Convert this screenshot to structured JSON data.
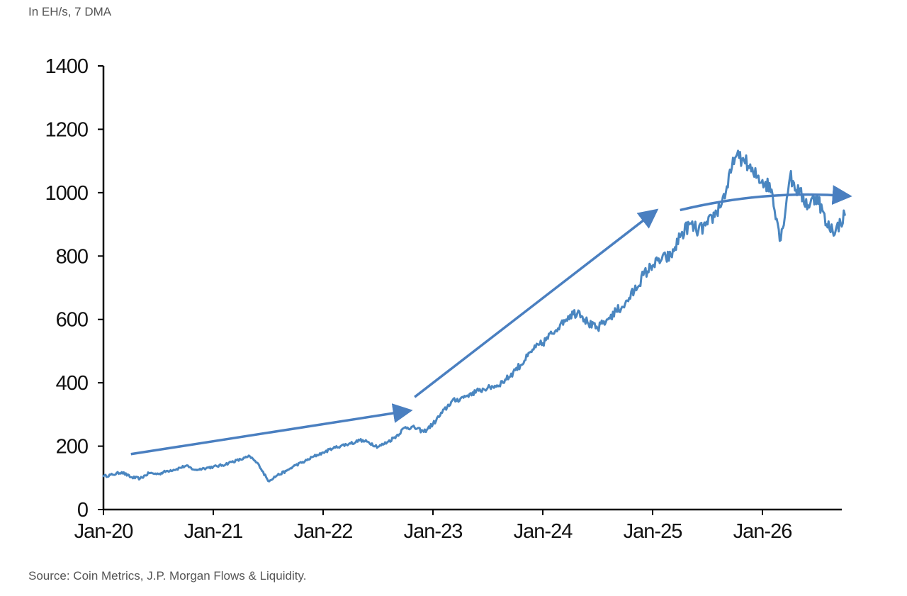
{
  "header": {
    "unit_label": "In EH/s, 7 DMA"
  },
  "footer": {
    "source": "Source: Coin Metrics, J.P. Morgan Flows & Liquidity."
  },
  "colors": {
    "series": "#4a86c0",
    "arrow": "#4a7fc0",
    "axis": "#000000",
    "text": "#111111"
  },
  "chart_data": {
    "type": "line",
    "title": "",
    "xlabel": "",
    "ylabel": "",
    "ylim": [
      0,
      1400
    ],
    "yticks": [
      0,
      200,
      400,
      600,
      800,
      1000,
      1200,
      1400
    ],
    "xlim": [
      "2020-01",
      "2026-10"
    ],
    "xticks": [
      {
        "date": "2020-01",
        "label": "Jan-20"
      },
      {
        "date": "2021-01",
        "label": "Jan-21"
      },
      {
        "date": "2022-01",
        "label": "Jan-22"
      },
      {
        "date": "2023-01",
        "label": "Jan-23"
      },
      {
        "date": "2024-01",
        "label": "Jan-24"
      },
      {
        "date": "2025-01",
        "label": "Jan-25"
      },
      {
        "date": "2026-01",
        "label": "Jan-26"
      }
    ],
    "grid": false,
    "legend": "none",
    "series": [
      {
        "points": [
          [
            "2020-01",
            105
          ],
          [
            "2020-02",
            110
          ],
          [
            "2020-03",
            118
          ],
          [
            "2020-04",
            102
          ],
          [
            "2020-05",
            98
          ],
          [
            "2020-06",
            115
          ],
          [
            "2020-07",
            112
          ],
          [
            "2020-08",
            122
          ],
          [
            "2020-09",
            128
          ],
          [
            "2020-10",
            138
          ],
          [
            "2020-11",
            125
          ],
          [
            "2020-12",
            130
          ],
          [
            "2021-01",
            135
          ],
          [
            "2021-02",
            140
          ],
          [
            "2021-03",
            150
          ],
          [
            "2021-04",
            158
          ],
          [
            "2021-05",
            168
          ],
          [
            "2021-06",
            140
          ],
          [
            "2021-07",
            90
          ],
          [
            "2021-08",
            108
          ],
          [
            "2021-09",
            122
          ],
          [
            "2021-10",
            140
          ],
          [
            "2021-11",
            152
          ],
          [
            "2021-12",
            168
          ],
          [
            "2022-01",
            180
          ],
          [
            "2022-02",
            192
          ],
          [
            "2022-03",
            202
          ],
          [
            "2022-04",
            208
          ],
          [
            "2022-05",
            218
          ],
          [
            "2022-06",
            212
          ],
          [
            "2022-07",
            198
          ],
          [
            "2022-08",
            212
          ],
          [
            "2022-09",
            232
          ],
          [
            "2022-10",
            260
          ],
          [
            "2022-11",
            258
          ],
          [
            "2022-12",
            245
          ],
          [
            "2023-01",
            270
          ],
          [
            "2023-02",
            305
          ],
          [
            "2023-03",
            340
          ],
          [
            "2023-04",
            350
          ],
          [
            "2023-05",
            365
          ],
          [
            "2023-06",
            375
          ],
          [
            "2023-07",
            385
          ],
          [
            "2023-08",
            392
          ],
          [
            "2023-09",
            410
          ],
          [
            "2023-10",
            440
          ],
          [
            "2023-11",
            470
          ],
          [
            "2023-12",
            505
          ],
          [
            "2024-01",
            525
          ],
          [
            "2024-02",
            555
          ],
          [
            "2024-03",
            590
          ],
          [
            "2024-04",
            615
          ],
          [
            "2024-05",
            625
          ],
          [
            "2024-06",
            585
          ],
          [
            "2024-07",
            570
          ],
          [
            "2024-08",
            600
          ],
          [
            "2024-09",
            625
          ],
          [
            "2024-10",
            650
          ],
          [
            "2024-11",
            690
          ],
          [
            "2024-12",
            740
          ],
          [
            "2025-01",
            770
          ],
          [
            "2025-02",
            790
          ],
          [
            "2025-03",
            800
          ],
          [
            "2025-04",
            860
          ],
          [
            "2025-05",
            900
          ],
          [
            "2025-06",
            880
          ],
          [
            "2025-07",
            900
          ],
          [
            "2025-08",
            940
          ],
          [
            "2025-09",
            1000
          ],
          [
            "2025-10",
            1110
          ],
          [
            "2025-11",
            1100
          ],
          [
            "2025-12",
            1060
          ],
          [
            "2026-01",
            1040
          ],
          [
            "2026-02",
            1010
          ],
          [
            "2026-03",
            850
          ],
          [
            "2026-04",
            1050
          ],
          [
            "2026-05",
            1000
          ],
          [
            "2026-06",
            960
          ],
          [
            "2026-07",
            990
          ],
          [
            "2026-08",
            900
          ],
          [
            "2026-09",
            880
          ],
          [
            "2026-10",
            930
          ]
        ]
      }
    ],
    "annotations": [
      {
        "type": "arrow",
        "from": [
          "2020-04",
          175
        ],
        "to": [
          "2022-10",
          310
        ]
      },
      {
        "type": "arrow",
        "from": [
          "2022-11",
          355
        ],
        "to": [
          "2025-01",
          935
        ]
      },
      {
        "type": "arrow",
        "from": [
          "2025-04",
          945
        ],
        "to": [
          "2026-10",
          990
        ]
      }
    ]
  }
}
